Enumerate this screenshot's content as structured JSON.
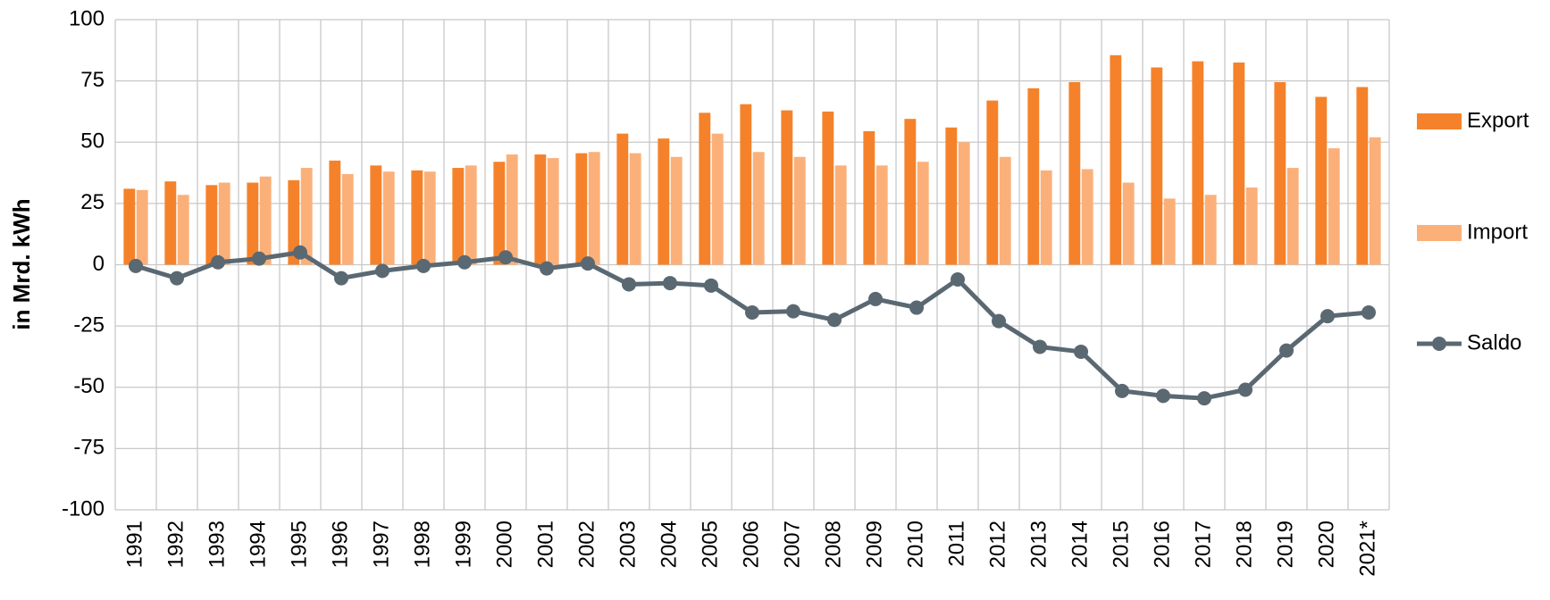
{
  "chart_data": {
    "type": "bar",
    "y_label": "in Mrd. kWh",
    "categories": [
      "1991",
      "1992",
      "1993",
      "1994",
      "1995",
      "1996",
      "1997",
      "1998",
      "1999",
      "2000",
      "2001",
      "2002",
      "2003",
      "2004",
      "2005",
      "2006",
      "2007",
      "2008",
      "2009",
      "2010",
      "2011",
      "2012",
      "2013",
      "2014",
      "2015",
      "2016",
      "2017",
      "2018",
      "2019",
      "2020",
      "2021*"
    ],
    "series": [
      {
        "name": "Export",
        "color": "#f5822a",
        "values": [
          31,
          34,
          32.5,
          33.5,
          34.5,
          42.5,
          40.5,
          38.5,
          39.5,
          42,
          45,
          45.5,
          53.5,
          51.5,
          62,
          65.5,
          63,
          62.5,
          54.5,
          59.5,
          56,
          67,
          72,
          74.5,
          85.5,
          80.5,
          83,
          82.5,
          74.5,
          68.5,
          72.5
        ]
      },
      {
        "name": "Import",
        "color": "#fbb07a",
        "values": [
          30.5,
          28.5,
          33.5,
          36,
          39.5,
          37,
          38,
          38,
          40.5,
          45,
          43.5,
          46,
          45.5,
          44,
          53.5,
          46,
          44,
          40.5,
          40.5,
          42,
          50,
          44,
          38.5,
          39,
          33.5,
          27,
          28.5,
          31.5,
          39.5,
          47.5,
          52
        ]
      },
      {
        "name": "Saldo",
        "color": "#5a6872",
        "type": "line",
        "values": [
          -0.5,
          -5.5,
          1,
          2.5,
          5,
          -5.5,
          -2.5,
          -0.5,
          1,
          3,
          -1.5,
          0.5,
          -8,
          -7.5,
          -8.5,
          -19.5,
          -19,
          -22.5,
          -14,
          -17.5,
          -6,
          -23,
          -33.5,
          -35.5,
          -51.5,
          -53.5,
          -54.5,
          -51,
          -35,
          -21,
          -19.5
        ]
      }
    ],
    "ylim": [
      -100,
      100
    ],
    "yticks": [
      -100,
      -75,
      -50,
      -25,
      0,
      25,
      50,
      75,
      100
    ],
    "grid": true,
    "legend": "right"
  }
}
